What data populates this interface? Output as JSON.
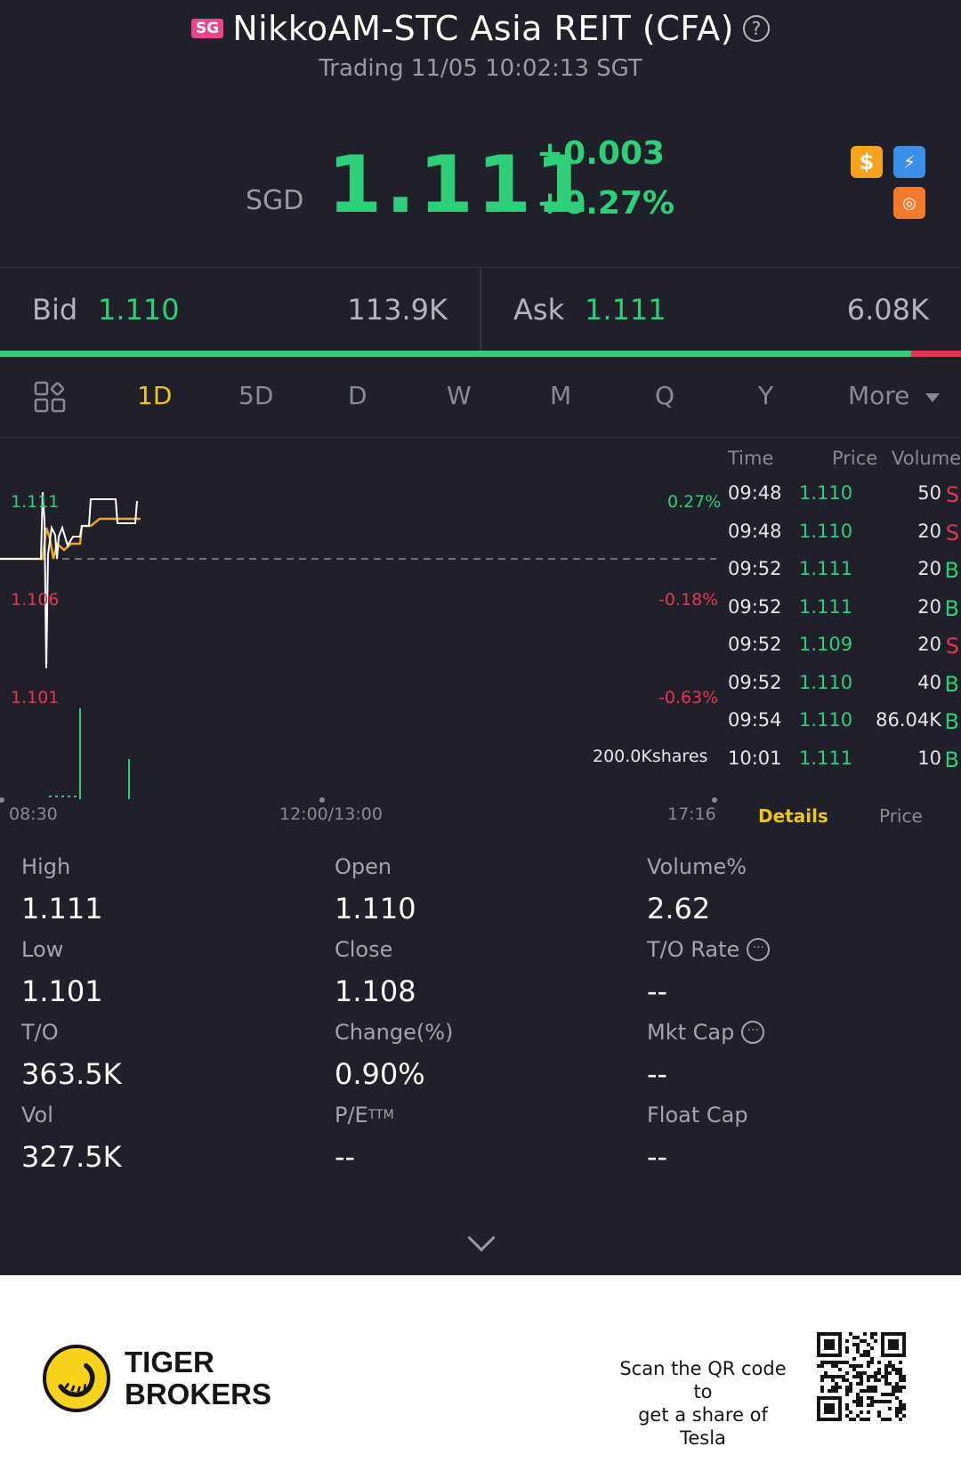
{
  "header": {
    "market_badge": "SG",
    "title": "NikkoAM-STC Asia REIT (CFA)",
    "status": "Trading 11/05 10:02:13 SGT",
    "currency": "SGD",
    "last_price": "1.111",
    "change": "+0.003",
    "change_pct": "+0.27%",
    "badges": [
      "dollar-icon",
      "flash-icon",
      "lending-icon"
    ]
  },
  "bidask": {
    "bid_label": "Bid",
    "bid_price": "1.110",
    "bid_size": "113.9K",
    "ask_label": "Ask",
    "ask_price": "1.111",
    "ask_size": "6.08K",
    "bid_ratio": 0.948
  },
  "tabs": {
    "items": [
      "1D",
      "5D",
      "D",
      "W",
      "M",
      "Q",
      "Y",
      "More"
    ],
    "active": "1D"
  },
  "chart": {
    "y_left": [
      "1.111",
      "1.106",
      "1.101"
    ],
    "y_right": [
      "0.27%",
      "-0.18%",
      "-0.63%"
    ],
    "x_labels": [
      "08:30",
      "12:00/13:00",
      "17:16"
    ],
    "volume_label": "200.0Kshares",
    "colors": {
      "up": "#2fcf7a",
      "down": "#e8364e",
      "price_line": "#ffffff",
      "avg_line": "#f5a21d"
    }
  },
  "chart_data": {
    "type": "line",
    "series": [],
    "prev_close": 1.108,
    "ylim": [
      1.101,
      1.111
    ]
  },
  "trades": {
    "headers": {
      "time": "Time",
      "price": "Price",
      "volume": "Volume"
    },
    "rows": [
      {
        "time": "09:48",
        "price": "1.110",
        "volume": "50",
        "side": "S"
      },
      {
        "time": "09:48",
        "price": "1.110",
        "volume": "20",
        "side": "S"
      },
      {
        "time": "09:52",
        "price": "1.111",
        "volume": "20",
        "side": "B"
      },
      {
        "time": "09:52",
        "price": "1.111",
        "volume": "20",
        "side": "B"
      },
      {
        "time": "09:52",
        "price": "1.109",
        "volume": "20",
        "side": "S"
      },
      {
        "time": "09:52",
        "price": "1.110",
        "volume": "40",
        "side": "B"
      },
      {
        "time": "09:54",
        "price": "1.110",
        "volume": "86.04K",
        "side": "B"
      },
      {
        "time": "10:01",
        "price": "1.111",
        "volume": "10",
        "side": "B"
      }
    ],
    "tab_details": "Details",
    "tab_price": "Price"
  },
  "stats": {
    "high_label": "High",
    "high": "1.111",
    "open_label": "Open",
    "open": "1.110",
    "volpct_label": "Volume%",
    "volpct": "2.62",
    "low_label": "Low",
    "low": "1.101",
    "close_label": "Close",
    "close": "1.108",
    "torate_label": "T/O Rate",
    "torate": "--",
    "to_label": "T/O",
    "to": "363.5K",
    "change_label": "Change(%)",
    "change": "0.90%",
    "mktcap_label": "Mkt Cap",
    "mktcap": "--",
    "vol_label": "Vol",
    "vol": "327.5K",
    "pe_label": "P/E",
    "pe_sup": "TTM",
    "pe": "--",
    "floatcap_label": "Float Cap",
    "floatcap": "--"
  },
  "footer": {
    "brand_line1": "TIGER",
    "brand_line2": "BROKERS",
    "scan_line1": "Scan the QR code to",
    "scan_line2": "get a share of Tesla"
  }
}
